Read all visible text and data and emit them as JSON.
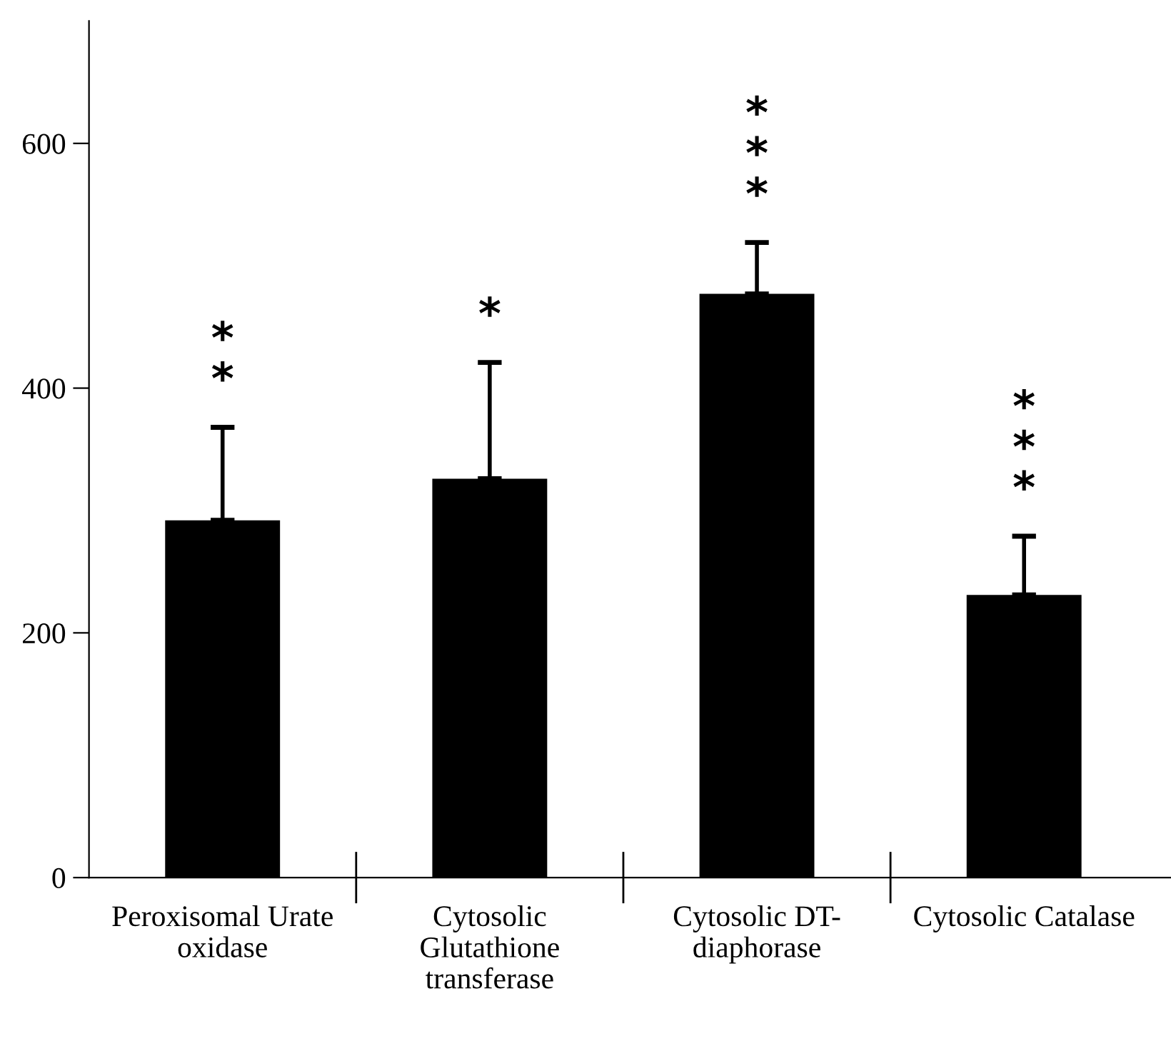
{
  "chart_data": {
    "type": "bar",
    "categories": [
      "Peroxisomal Urate\noxidase",
      "Cytosolic\nGlutathione\ntransferase",
      "Cytosolic DT-\ndiaphorase",
      "Cytosolic Catalase"
    ],
    "values": [
      292,
      326,
      477,
      231
    ],
    "errors": [
      [
        292,
        368
      ],
      [
        326,
        421
      ],
      [
        477,
        519
      ],
      [
        231,
        279
      ]
    ],
    "color": "#000000",
    "ylim": [
      0,
      700
    ],
    "yticks": [
      0,
      200,
      400,
      600
    ],
    "grid": false,
    "legend": false,
    "annotations": [
      {
        "text": "**",
        "x": "Peroxisomal Urate\noxidase",
        "y": 368
      },
      {
        "text": "*",
        "x": "Cytosolic\nGlutathione\ntransferase",
        "y": 421
      },
      {
        "text": "***",
        "x": "Cytosolic DT-\ndiaphorase",
        "y": 519
      },
      {
        "text": "***",
        "x": "Cytosolic Catalase",
        "y": 279
      }
    ]
  }
}
